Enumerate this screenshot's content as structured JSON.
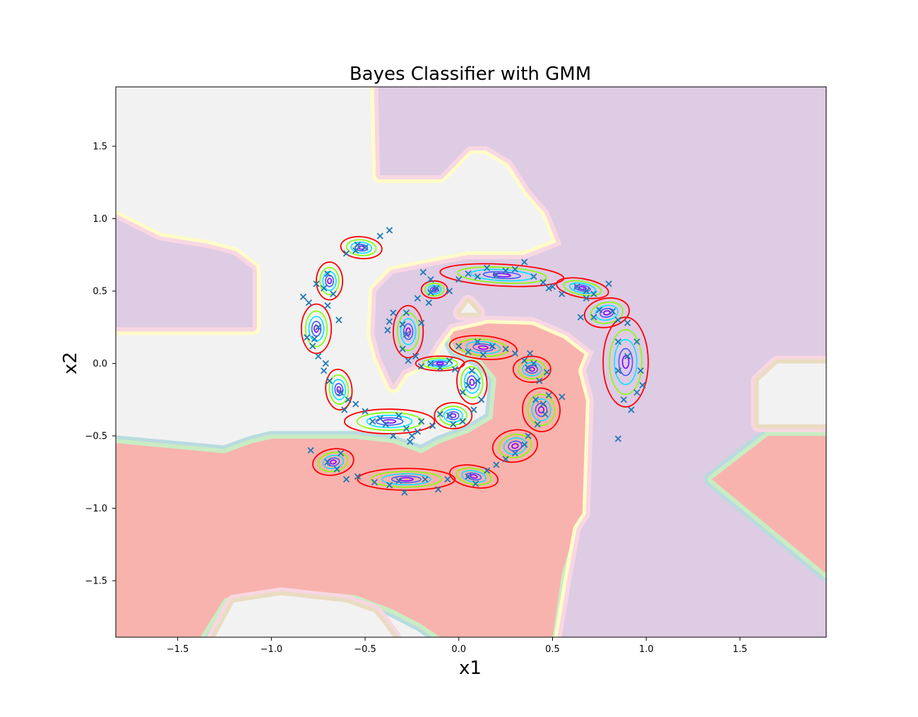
{
  "colors": {
    "region_red": "#f9b3ae",
    "region_purple": "#decbe4",
    "region_gray": "#f2f2f2",
    "band_yellow": "#fffcc8",
    "band_pink": "#f8d7e2",
    "band_tan": "#eadcc2",
    "band_cyan": "#b9dbe0",
    "band_green": "#c9ecc3",
    "points": "#1f77b4",
    "contour_levels": [
      "#ff0000",
      "#80ff00",
      "#00e6ff",
      "#3d5cff",
      "#8000ff"
    ]
  },
  "chart_data": {
    "type": "scatter",
    "title": "Bayes Classifier with GMM",
    "xlabel": "x1",
    "ylabel": "x2",
    "xlim": [
      -1.83,
      1.96
    ],
    "ylim": [
      -1.89,
      1.91
    ],
    "xticks": [
      -1.5,
      -1.0,
      -0.5,
      0.0,
      0.5,
      1.0,
      1.5
    ],
    "yticks": [
      -1.5,
      -1.0,
      -0.5,
      0.0,
      0.5,
      1.0,
      1.5
    ],
    "xtick_labels": [
      "−1.5",
      "−1.0",
      "−0.5",
      "0.0",
      "0.5",
      "1.0",
      "1.5"
    ],
    "ytick_labels": [
      "−1.5",
      "−1.0",
      "−0.5",
      "0.0",
      "0.5",
      "1.0",
      "1.5"
    ],
    "grid": false,
    "marker": "x",
    "regions": [
      {
        "class": "red",
        "polygon": [
          [
            -1.83,
            -0.55
          ],
          [
            -1.25,
            -0.62
          ],
          [
            -1.1,
            -0.55
          ],
          [
            -1.0,
            -0.52
          ],
          [
            -0.55,
            -0.52
          ],
          [
            -0.35,
            -0.55
          ],
          [
            -0.2,
            -0.62
          ],
          [
            -0.1,
            -0.55
          ],
          [
            0.05,
            -0.48
          ],
          [
            0.18,
            -0.38
          ],
          [
            0.2,
            -0.1
          ],
          [
            0.12,
            0.02
          ],
          [
            -0.02,
            0.1
          ],
          [
            -0.06,
            0.22
          ],
          [
            0.15,
            0.32
          ],
          [
            0.4,
            0.3
          ],
          [
            0.65,
            0.12
          ],
          [
            0.7,
            0.05
          ],
          [
            0.65,
            -0.05
          ],
          [
            0.72,
            -0.25
          ],
          [
            0.68,
            -1.05
          ],
          [
            0.62,
            -1.15
          ],
          [
            0.55,
            -1.45
          ],
          [
            0.5,
            -1.89
          ],
          [
            -0.1,
            -1.89
          ],
          [
            -0.2,
            -1.8
          ],
          [
            -0.35,
            -1.7
          ],
          [
            -0.55,
            -1.6
          ],
          [
            -0.95,
            -1.55
          ],
          [
            -1.25,
            -1.62
          ],
          [
            -1.38,
            -1.89
          ],
          [
            -1.83,
            -1.89
          ]
        ]
      },
      {
        "class": "gray",
        "polygon": [
          [
            -0.55,
            -1.89
          ],
          [
            -0.35,
            -1.89
          ],
          [
            -0.4,
            -1.8
          ],
          [
            -0.45,
            -1.72
          ],
          [
            -0.6,
            -1.65
          ],
          [
            -0.95,
            -1.6
          ],
          [
            -1.2,
            -1.65
          ],
          [
            -1.3,
            -1.89
          ]
        ]
      },
      {
        "class": "purple",
        "polygon": [
          [
            -0.43,
            1.91
          ],
          [
            1.96,
            1.91
          ],
          [
            1.96,
            0.0
          ],
          [
            1.7,
            0.0
          ],
          [
            1.6,
            -0.12
          ],
          [
            1.6,
            -0.42
          ],
          [
            1.96,
            -0.42
          ],
          [
            1.96,
            -0.5
          ],
          [
            1.65,
            -0.5
          ],
          [
            1.35,
            -0.8
          ],
          [
            1.96,
            -1.45
          ],
          [
            1.96,
            -1.89
          ],
          [
            0.55,
            -1.89
          ],
          [
            0.6,
            -1.5
          ],
          [
            0.65,
            -1.15
          ],
          [
            0.7,
            -1.05
          ],
          [
            0.72,
            -0.25
          ],
          [
            0.68,
            -0.05
          ],
          [
            0.72,
            0.08
          ],
          [
            0.58,
            0.22
          ],
          [
            0.4,
            0.32
          ],
          [
            0.15,
            0.33
          ],
          [
            -0.05,
            0.27
          ],
          [
            -0.12,
            0.15
          ],
          [
            -0.18,
            0.02
          ],
          [
            -0.3,
            -0.05
          ],
          [
            -0.35,
            -0.15
          ],
          [
            -0.42,
            0.05
          ],
          [
            -0.45,
            0.2
          ],
          [
            -0.44,
            0.5
          ],
          [
            -0.35,
            0.62
          ],
          [
            0.05,
            0.72
          ],
          [
            0.35,
            0.72
          ],
          [
            0.55,
            0.82
          ],
          [
            0.48,
            1.05
          ],
          [
            0.38,
            1.2
          ],
          [
            0.28,
            1.4
          ],
          [
            0.15,
            1.5
          ],
          [
            0.05,
            1.5
          ],
          [
            -0.1,
            1.3
          ],
          [
            -0.42,
            1.3
          ]
        ]
      },
      {
        "class": "purple",
        "polygon": [
          [
            -1.83,
            1.0
          ],
          [
            -1.6,
            0.85
          ],
          [
            -1.35,
            0.8
          ],
          [
            -1.2,
            0.75
          ],
          [
            -1.1,
            0.65
          ],
          [
            -1.1,
            0.25
          ],
          [
            -1.83,
            0.25
          ]
        ]
      },
      {
        "class": "red",
        "polygon": [
          [
            1.96,
            -1.45
          ],
          [
            1.35,
            -0.8
          ],
          [
            1.65,
            -0.5
          ],
          [
            1.96,
            -0.5
          ]
        ]
      },
      {
        "class": "gray",
        "polygon": [
          [
            1.7,
            0.0
          ],
          [
            1.96,
            0.0
          ],
          [
            1.96,
            -0.42
          ],
          [
            1.6,
            -0.42
          ],
          [
            1.6,
            -0.12
          ]
        ]
      },
      {
        "class": "gray",
        "polygon": [
          [
            0.05,
            0.42
          ],
          [
            0.1,
            0.35
          ],
          [
            0.01,
            0.35
          ]
        ]
      }
    ],
    "series": [
      {
        "values": [
          [
            -0.37,
            0.92
          ],
          [
            -0.42,
            0.88
          ],
          [
            -0.54,
            0.82
          ],
          [
            -0.5,
            0.8
          ],
          [
            -0.55,
            0.78
          ],
          [
            -0.6,
            0.76
          ],
          [
            -0.7,
            0.62
          ],
          [
            -0.76,
            0.55
          ],
          [
            -0.72,
            0.52
          ],
          [
            -0.67,
            0.48
          ],
          [
            -0.7,
            0.4
          ],
          [
            -0.64,
            0.3
          ],
          [
            -0.8,
            0.42
          ],
          [
            -0.83,
            0.46
          ],
          [
            -0.75,
            0.25
          ],
          [
            -0.77,
            0.17
          ],
          [
            -0.81,
            0.18
          ],
          [
            -0.78,
            0.12
          ],
          [
            -0.75,
            0.05
          ],
          [
            -0.71,
            0.0
          ],
          [
            -0.72,
            -0.05
          ],
          [
            -0.69,
            -0.12
          ],
          [
            -0.63,
            -0.2
          ],
          [
            -0.59,
            -0.25
          ],
          [
            -0.61,
            -0.32
          ],
          [
            -0.55,
            -0.28
          ],
          [
            -0.5,
            -0.33
          ],
          [
            -0.42,
            -0.38
          ],
          [
            -0.46,
            -0.4
          ],
          [
            -0.39,
            -0.42
          ],
          [
            -0.32,
            -0.36
          ],
          [
            -0.28,
            -0.45
          ],
          [
            -0.2,
            -0.4
          ],
          [
            -0.14,
            -0.43
          ],
          [
            -0.25,
            -0.5
          ],
          [
            -0.26,
            -0.54
          ],
          [
            -0.35,
            -0.5
          ],
          [
            -0.22,
            -0.47
          ],
          [
            -0.79,
            -0.6
          ],
          [
            -0.7,
            -0.68
          ],
          [
            -0.65,
            -0.73
          ],
          [
            -0.63,
            -0.62
          ],
          [
            -0.6,
            -0.8
          ],
          [
            -0.54,
            -0.78
          ],
          [
            -0.45,
            -0.82
          ],
          [
            -0.37,
            -0.84
          ],
          [
            -0.32,
            -0.81
          ],
          [
            -0.29,
            -0.89
          ],
          [
            -0.18,
            -0.8
          ],
          [
            -0.11,
            -0.87
          ],
          [
            -0.06,
            -0.8
          ],
          [
            0.05,
            -0.78
          ],
          [
            0.09,
            -0.83
          ],
          [
            0.15,
            -0.74
          ],
          [
            0.2,
            -0.7
          ],
          [
            0.25,
            -0.66
          ],
          [
            0.3,
            -0.62
          ],
          [
            0.35,
            -0.56
          ],
          [
            0.37,
            -0.5
          ],
          [
            0.42,
            -0.42
          ],
          [
            0.46,
            -0.35
          ],
          [
            0.45,
            -0.28
          ],
          [
            0.48,
            -0.22
          ],
          [
            0.41,
            -0.25
          ],
          [
            0.55,
            -0.23
          ],
          [
            0.43,
            -0.12
          ],
          [
            0.37,
            -0.03
          ],
          [
            0.35,
            0.02
          ],
          [
            0.4,
            0.0
          ],
          [
            0.47,
            -0.06
          ],
          [
            0.38,
            0.07
          ],
          [
            0.3,
            0.07
          ],
          [
            0.25,
            0.1
          ],
          [
            0.18,
            0.12
          ],
          [
            0.1,
            0.15
          ],
          [
            0.05,
            0.08
          ],
          [
            0.0,
            0.12
          ],
          [
            0.13,
            0.06
          ],
          [
            0.07,
            -0.05
          ],
          [
            0.1,
            -0.12
          ],
          [
            0.05,
            -0.15
          ],
          [
            0.02,
            -0.2
          ],
          [
            0.12,
            -0.25
          ],
          [
            0.08,
            -0.32
          ],
          [
            0.02,
            -0.4
          ],
          [
            -0.05,
            -0.36
          ],
          [
            -0.1,
            -0.35
          ],
          [
            -0.03,
            -0.42
          ],
          [
            -0.2,
            -0.02
          ],
          [
            -0.15,
            0.0
          ],
          [
            -0.1,
            -0.03
          ],
          [
            -0.05,
            0.02
          ],
          [
            -0.02,
            -0.04
          ],
          [
            -0.27,
            0.02
          ],
          [
            -0.23,
            0.05
          ],
          [
            -0.3,
            0.1
          ],
          [
            -0.28,
            0.2
          ],
          [
            -0.3,
            0.27
          ],
          [
            -0.28,
            0.35
          ],
          [
            -0.2,
            0.28
          ],
          [
            -0.22,
            0.45
          ],
          [
            -0.16,
            0.42
          ],
          [
            -0.38,
            0.23
          ],
          [
            -0.35,
            0.35
          ],
          [
            -0.37,
            0.29
          ],
          [
            -0.15,
            0.58
          ],
          [
            -0.12,
            0.52
          ],
          [
            -0.19,
            0.63
          ],
          [
            -0.05,
            0.5
          ],
          [
            -0.15,
            0.49
          ],
          [
            0.0,
            0.58
          ],
          [
            0.05,
            0.62
          ],
          [
            0.1,
            0.6
          ],
          [
            0.15,
            0.66
          ],
          [
            0.2,
            0.61
          ],
          [
            0.25,
            0.64
          ],
          [
            0.3,
            0.65
          ],
          [
            0.35,
            0.7
          ],
          [
            0.4,
            0.6
          ],
          [
            0.45,
            0.56
          ],
          [
            0.48,
            0.52
          ],
          [
            0.5,
            0.53
          ],
          [
            0.55,
            0.48
          ],
          [
            0.63,
            0.53
          ],
          [
            0.68,
            0.5
          ],
          [
            0.72,
            0.48
          ],
          [
            0.8,
            0.55
          ],
          [
            0.68,
            0.45
          ],
          [
            0.75,
            0.37
          ],
          [
            0.82,
            0.36
          ],
          [
            0.85,
            0.3
          ],
          [
            0.9,
            0.28
          ],
          [
            0.72,
            0.32
          ],
          [
            0.65,
            0.32
          ],
          [
            0.85,
            0.15
          ],
          [
            0.95,
            0.15
          ],
          [
            0.9,
            0.05
          ],
          [
            0.85,
            -0.05
          ],
          [
            0.97,
            -0.05
          ],
          [
            0.98,
            -0.15
          ],
          [
            0.95,
            -0.2
          ],
          [
            0.88,
            -0.25
          ],
          [
            0.92,
            -0.32
          ],
          [
            0.85,
            -0.52
          ]
        ]
      }
    ],
    "gmm_components": [
      {
        "center": [
          -0.52,
          0.8
        ],
        "rx": 0.11,
        "ry": 0.075,
        "angle": -5
      },
      {
        "center": [
          -0.69,
          0.57
        ],
        "rx": 0.07,
        "ry": 0.13,
        "angle": 0
      },
      {
        "center": [
          -0.76,
          0.24
        ],
        "rx": 0.08,
        "ry": 0.17,
        "angle": 0
      },
      {
        "center": [
          -0.64,
          -0.18
        ],
        "rx": 0.07,
        "ry": 0.14,
        "angle": 5
      },
      {
        "center": [
          -0.37,
          -0.4
        ],
        "rx": 0.24,
        "ry": 0.085,
        "angle": 0
      },
      {
        "center": [
          -0.67,
          -0.68
        ],
        "rx": 0.11,
        "ry": 0.09,
        "angle": 10
      },
      {
        "center": [
          -0.28,
          -0.8
        ],
        "rx": 0.26,
        "ry": 0.075,
        "angle": 0
      },
      {
        "center": [
          0.08,
          -0.78
        ],
        "rx": 0.13,
        "ry": 0.075,
        "angle": -10
      },
      {
        "center": [
          0.3,
          -0.57
        ],
        "rx": 0.12,
        "ry": 0.11,
        "angle": 10
      },
      {
        "center": [
          0.44,
          -0.32
        ],
        "rx": 0.1,
        "ry": 0.15,
        "angle": 5
      },
      {
        "center": [
          0.39,
          -0.04
        ],
        "rx": 0.1,
        "ry": 0.09,
        "angle": 0
      },
      {
        "center": [
          0.13,
          0.11
        ],
        "rx": 0.18,
        "ry": 0.08,
        "angle": -5
      },
      {
        "center": [
          0.07,
          -0.13
        ],
        "rx": 0.08,
        "ry": 0.15,
        "angle": 5
      },
      {
        "center": [
          -0.03,
          -0.36
        ],
        "rx": 0.1,
        "ry": 0.09,
        "angle": 0
      },
      {
        "center": [
          -0.1,
          0.0
        ],
        "rx": 0.13,
        "ry": 0.05,
        "angle": 0
      },
      {
        "center": [
          -0.27,
          0.22
        ],
        "rx": 0.08,
        "ry": 0.18,
        "angle": 0
      },
      {
        "center": [
          -0.13,
          0.51
        ],
        "rx": 0.07,
        "ry": 0.06,
        "angle": 0
      },
      {
        "center": [
          0.23,
          0.61
        ],
        "rx": 0.33,
        "ry": 0.075,
        "angle": -3
      },
      {
        "center": [
          0.66,
          0.52
        ],
        "rx": 0.14,
        "ry": 0.065,
        "angle": -10
      },
      {
        "center": [
          0.79,
          0.35
        ],
        "rx": 0.12,
        "ry": 0.1,
        "angle": 10
      },
      {
        "center": [
          0.89,
          0.01
        ],
        "rx": 0.12,
        "ry": 0.31,
        "angle": 0
      }
    ]
  }
}
